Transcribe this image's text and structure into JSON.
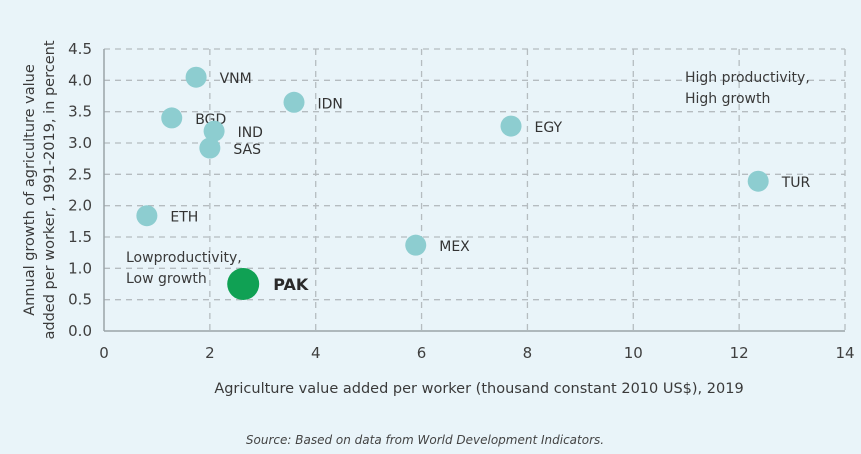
{
  "chart_data": {
    "type": "scatter",
    "xlabel": "Agriculture value added per worker (thousand constant 2010 US$), 2019",
    "ylabel": [
      "Annual growth of agriculture value",
      "added per worker, 1991-2019, in percent"
    ],
    "xlim": [
      0,
      14
    ],
    "ylim": [
      0,
      4.5
    ],
    "xticks": [
      0,
      2,
      4,
      6,
      8,
      10,
      12,
      14
    ],
    "xtick_labels": [
      "0",
      "2",
      "4",
      "6",
      "8",
      "10",
      "12",
      "14"
    ],
    "yticks": [
      0,
      0.5,
      1,
      1.5,
      2,
      2.5,
      3,
      3.5,
      4,
      4.5
    ],
    "ytick_labels": [
      "0.0",
      "0.5",
      "1.0",
      "1.5",
      "2.0",
      "2.5",
      "3.0",
      "3.5",
      "4.0",
      "4.5"
    ],
    "grid": true,
    "points": [
      {
        "label": "VNM",
        "x": 1.74,
        "y": 4.05,
        "highlight": false
      },
      {
        "label": "BGD",
        "x": 1.28,
        "y": 3.4,
        "highlight": false
      },
      {
        "label": "IND",
        "x": 2.08,
        "y": 3.19,
        "highlight": false
      },
      {
        "label": "SAS",
        "x": 2.0,
        "y": 2.92,
        "highlight": false
      },
      {
        "label": "IDN",
        "x": 3.59,
        "y": 3.65,
        "highlight": false
      },
      {
        "label": "EGY",
        "x": 7.69,
        "y": 3.27,
        "highlight": false
      },
      {
        "label": "TUR",
        "x": 12.36,
        "y": 2.39,
        "highlight": false
      },
      {
        "label": "ETH",
        "x": 0.81,
        "y": 1.84,
        "highlight": false
      },
      {
        "label": "MEX",
        "x": 5.89,
        "y": 1.37,
        "highlight": false
      },
      {
        "label": "PAK",
        "x": 2.63,
        "y": 0.75,
        "highlight": true
      }
    ],
    "annotations": [
      {
        "lines": [
          "High productivity,",
          "High growth"
        ],
        "quadrant": "top-right"
      },
      {
        "lines": [
          "Lowproductivity,",
          "Low growth"
        ],
        "quadrant": "bottom-left"
      }
    ],
    "source": "Source: Based on data from World Development Indicators."
  },
  "colors": {
    "point": "#8dcdd0",
    "highlight": "#10a154",
    "grid": "#b5bcc0",
    "axis": "#9aa3a8",
    "background": "#e9f4f9"
  }
}
